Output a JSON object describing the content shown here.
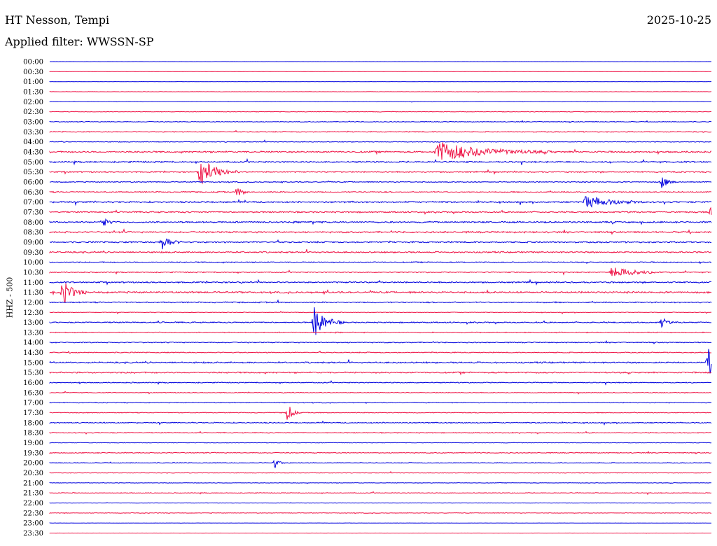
{
  "header": {
    "station": "HT Nesson, Tempi",
    "date": "2025-10-25",
    "filter": "Applied filter: WWSSN-SP"
  },
  "chart_data": {
    "type": "line",
    "ylabel": "HHZ - 500",
    "rows": [
      "00:00",
      "00:30",
      "01:00",
      "01:30",
      "02:00",
      "02:30",
      "03:00",
      "03:30",
      "04:00",
      "04:30",
      "05:00",
      "05:30",
      "06:00",
      "06:30",
      "07:00",
      "07:30",
      "08:00",
      "08:30",
      "09:00",
      "09:30",
      "10:00",
      "10:30",
      "11:00",
      "11:30",
      "12:00",
      "12:30",
      "13:00",
      "13:30",
      "14:00",
      "14:30",
      "15:00",
      "15:30",
      "16:00",
      "16:30",
      "17:00",
      "17:30",
      "18:00",
      "18:30",
      "19:00",
      "19:30",
      "20:00",
      "20:30",
      "21:00",
      "21:30",
      "22:00",
      "22:30",
      "23:00",
      "23:30"
    ],
    "colors": [
      "#0000dd",
      "#ee1144"
    ],
    "noise_level": [
      0.1,
      0.1,
      0.1,
      0.2,
      0.2,
      0.35,
      0.45,
      0.55,
      0.45,
      0.9,
      0.85,
      0.7,
      0.55,
      0.7,
      0.9,
      0.8,
      0.9,
      0.95,
      0.85,
      0.85,
      0.6,
      0.6,
      0.8,
      1.0,
      0.7,
      0.4,
      0.7,
      0.55,
      0.6,
      0.55,
      0.85,
      0.8,
      0.55,
      0.45,
      0.45,
      0.45,
      0.6,
      0.55,
      0.3,
      0.5,
      0.4,
      0.35,
      0.3,
      0.4,
      0.2,
      0.35,
      0.15,
      0.08
    ],
    "events": [
      {
        "row": 9,
        "x": 0.585,
        "amp": 15,
        "dur": 0.06
      },
      {
        "row": 11,
        "x": 0.227,
        "amp": 20,
        "dur": 0.02
      },
      {
        "row": 12,
        "x": 0.925,
        "amp": 9,
        "dur": 0.008
      },
      {
        "row": 13,
        "x": 0.285,
        "amp": 10,
        "dur": 0.005
      },
      {
        "row": 14,
        "x": 0.81,
        "amp": 9,
        "dur": 0.03
      },
      {
        "row": 15,
        "x": 0.999,
        "amp": 9,
        "dur": 0.015
      },
      {
        "row": 16,
        "x": 0.08,
        "amp": 8,
        "dur": 0.006
      },
      {
        "row": 18,
        "x": 0.17,
        "amp": 12,
        "dur": 0.01
      },
      {
        "row": 21,
        "x": 0.85,
        "amp": 8,
        "dur": 0.03
      },
      {
        "row": 23,
        "x": 0.02,
        "amp": 18,
        "dur": 0.012
      },
      {
        "row": 26,
        "x": 0.4,
        "amp": 22,
        "dur": 0.015
      },
      {
        "row": 26,
        "x": 0.925,
        "amp": 8,
        "dur": 0.006
      },
      {
        "row": 30,
        "x": 0.995,
        "amp": 20,
        "dur": 0.015
      },
      {
        "row": 35,
        "x": 0.36,
        "amp": 14,
        "dur": 0.006
      },
      {
        "row": 40,
        "x": 0.34,
        "amp": 8,
        "dur": 0.005
      }
    ]
  }
}
